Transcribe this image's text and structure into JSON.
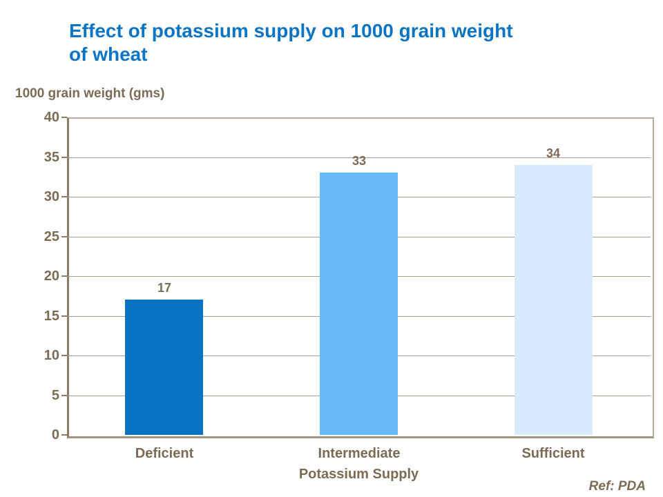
{
  "slide": {
    "title_line1": "Effect of potassium  supply on 1000 grain weight",
    "title_line2": "of wheat",
    "ref_note": "Ref: PDA"
  },
  "chart_data": {
    "type": "bar",
    "title": "Effect of potassium  supply on 1000 grain weight of wheat",
    "categories": [
      "Deficient",
      "Intermediate",
      "Sufficient"
    ],
    "values": [
      17,
      33,
      34
    ],
    "data_labels": [
      "17",
      "33",
      "34"
    ],
    "xlabel": "Potassium Supply",
    "ylabel": "1000 grain weight (gms)",
    "ylim": [
      0,
      40
    ],
    "ytick_step": 5,
    "ytick_labels": [
      "0",
      "5",
      "10",
      "15",
      "20",
      "25",
      "30",
      "35",
      "40"
    ],
    "grid": true,
    "legend": false,
    "bar_colors": [
      "#0a72c2",
      "#69baf8",
      "#d9eafc"
    ],
    "colors": {
      "title_text": "#0b74c4",
      "axis_text": "#7c6b54",
      "gridline": "#a89d8e",
      "axis_line": "#8c7b64",
      "frame_border": "#b3aa9d",
      "background": "#ffffff"
    }
  }
}
